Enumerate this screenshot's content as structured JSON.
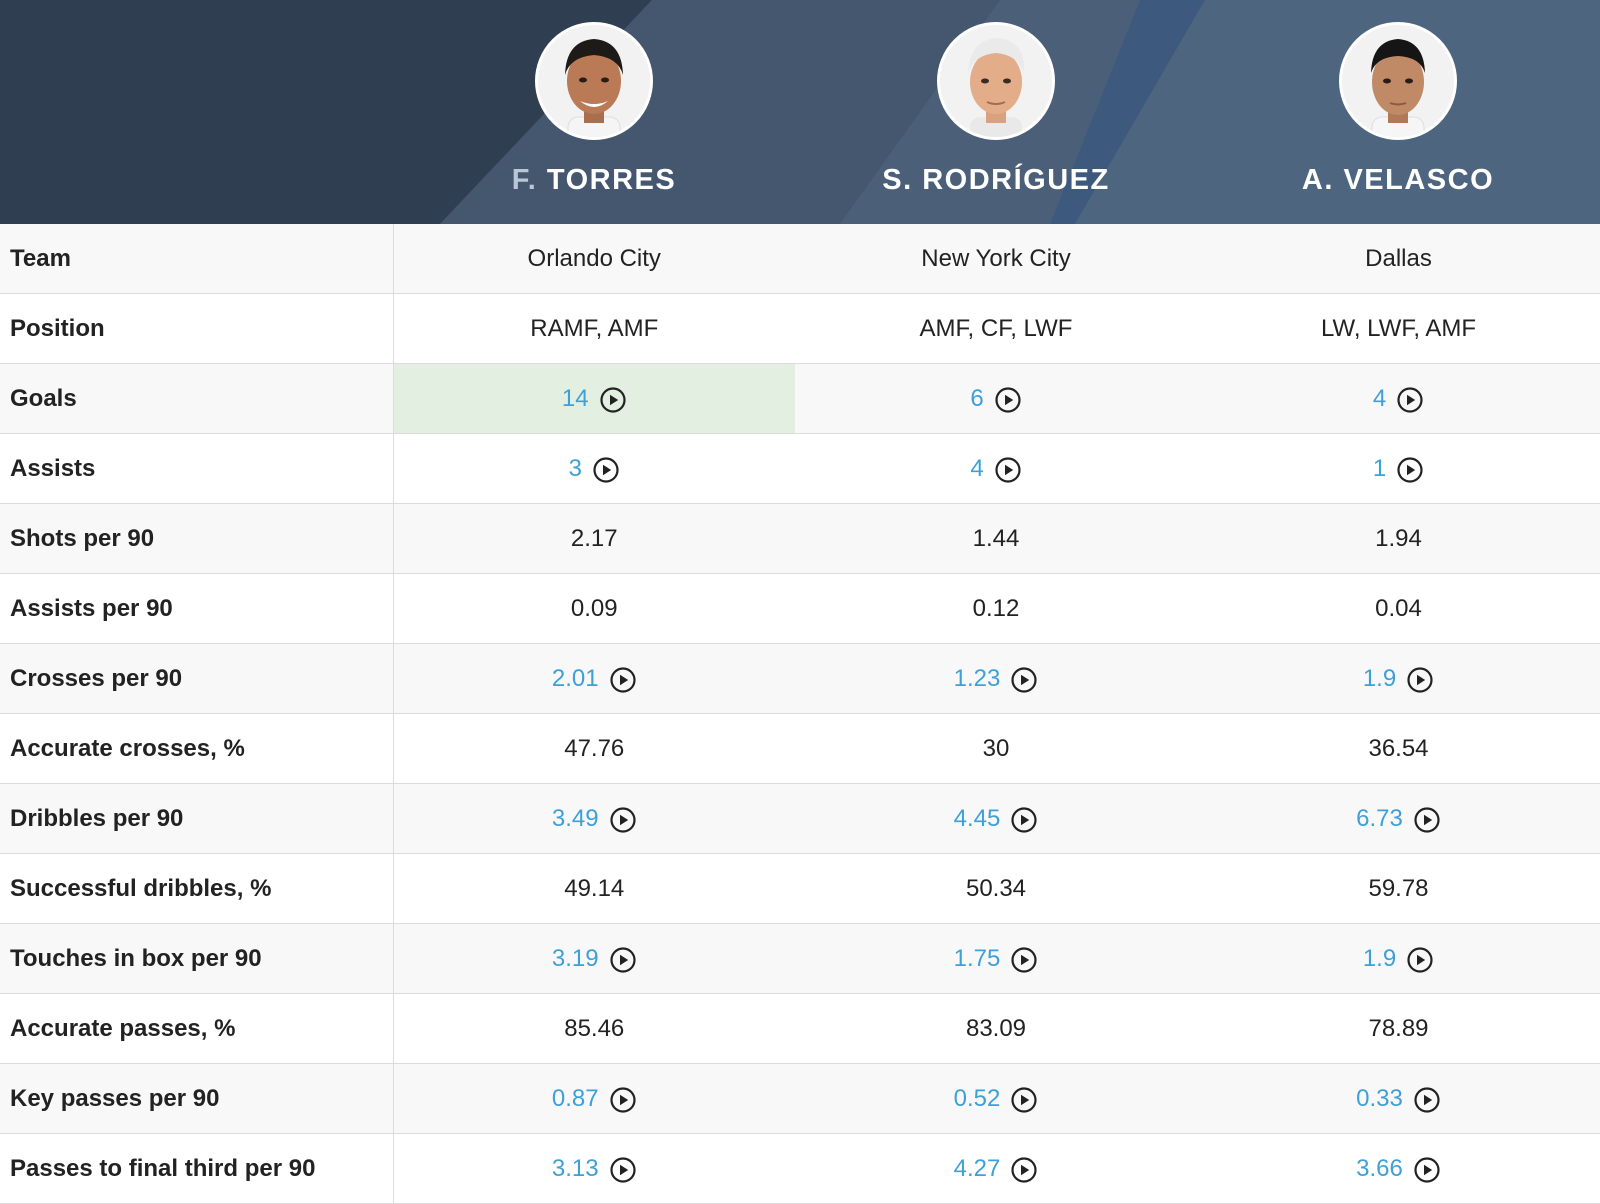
{
  "players": [
    {
      "initial": "F.",
      "surname": "TORRES",
      "photo": "player-photo"
    },
    {
      "initial": "S.",
      "surname": "RODRÍGUEZ",
      "photo": "player-photo"
    },
    {
      "initial": "A.",
      "surname": "VELASCO",
      "photo": "player-photo"
    }
  ],
  "colors": {
    "header_dark": "#2f3e50",
    "header_mid": "#4b5f78",
    "link_value": "#3ea0d8",
    "highlight_best": "#e3efe1",
    "row_alt": "#f8f8f8"
  },
  "rows": [
    {
      "label": "Team",
      "cells": [
        {
          "value": "Orlando City"
        },
        {
          "value": "New York City"
        },
        {
          "value": "Dallas"
        }
      ]
    },
    {
      "label": "Position",
      "cells": [
        {
          "value": "RAMF, AMF"
        },
        {
          "value": "AMF, CF, LWF"
        },
        {
          "value": "LW, LWF, AMF"
        }
      ]
    },
    {
      "label": "Goals",
      "cells": [
        {
          "value": "14",
          "video": true,
          "best": true
        },
        {
          "value": "6",
          "video": true
        },
        {
          "value": "4",
          "video": true
        }
      ]
    },
    {
      "label": "Assists",
      "cells": [
        {
          "value": "3",
          "video": true
        },
        {
          "value": "4",
          "video": true
        },
        {
          "value": "1",
          "video": true
        }
      ]
    },
    {
      "label": "Shots per 90",
      "cells": [
        {
          "value": "2.17"
        },
        {
          "value": "1.44"
        },
        {
          "value": "1.94"
        }
      ]
    },
    {
      "label": "Assists per 90",
      "cells": [
        {
          "value": "0.09"
        },
        {
          "value": "0.12"
        },
        {
          "value": "0.04"
        }
      ]
    },
    {
      "label": "Crosses per 90",
      "cells": [
        {
          "value": "2.01",
          "video": true
        },
        {
          "value": "1.23",
          "video": true
        },
        {
          "value": "1.9",
          "video": true
        }
      ]
    },
    {
      "label": "Accurate crosses, %",
      "cells": [
        {
          "value": "47.76"
        },
        {
          "value": "30"
        },
        {
          "value": "36.54"
        }
      ]
    },
    {
      "label": "Dribbles per 90",
      "cells": [
        {
          "value": "3.49",
          "video": true
        },
        {
          "value": "4.45",
          "video": true
        },
        {
          "value": "6.73",
          "video": true
        }
      ]
    },
    {
      "label": "Successful dribbles, %",
      "cells": [
        {
          "value": "49.14"
        },
        {
          "value": "50.34"
        },
        {
          "value": "59.78"
        }
      ]
    },
    {
      "label": "Touches in box per 90",
      "cells": [
        {
          "value": "3.19",
          "video": true
        },
        {
          "value": "1.75",
          "video": true
        },
        {
          "value": "1.9",
          "video": true
        }
      ]
    },
    {
      "label": "Accurate passes, %",
      "cells": [
        {
          "value": "85.46"
        },
        {
          "value": "83.09"
        },
        {
          "value": "78.89"
        }
      ]
    },
    {
      "label": "Key passes per 90",
      "cells": [
        {
          "value": "0.87",
          "video": true
        },
        {
          "value": "0.52",
          "video": true
        },
        {
          "value": "0.33",
          "video": true
        }
      ]
    },
    {
      "label": "Passes to final third per 90",
      "cells": [
        {
          "value": "3.13",
          "video": true
        },
        {
          "value": "4.27",
          "video": true
        },
        {
          "value": "3.66",
          "video": true
        }
      ]
    }
  ]
}
